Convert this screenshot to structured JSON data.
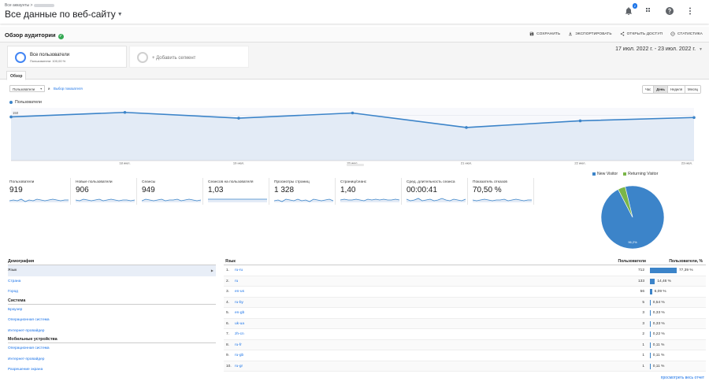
{
  "header": {
    "breadcrumb": "Все аккаунты >",
    "title": "Все данные по веб-сайту",
    "notification_count": "2",
    "icons": [
      "bell-icon",
      "apps-grid-icon",
      "help-icon",
      "more-vert-icon"
    ]
  },
  "section": {
    "title": "Обзор аудитории",
    "actions": {
      "save": "СОХРАНИТЬ",
      "export": "ЭКСПОРТИРОВАТЬ",
      "share": "ОТКРЫТЬ ДОСТУП",
      "insights": "СТАТИСТИКА"
    }
  },
  "segments": {
    "active_name": "Все пользователи",
    "active_sub": "Пользователи: 100,00 %",
    "add_label": "+ Добавить сегмент",
    "date_range": "17 июл. 2022 г. - 23 июл. 2022 г."
  },
  "tabs": {
    "overview": "Обзор"
  },
  "controls": {
    "metric": "Пользователи",
    "vs": "и",
    "pick_metric": "Выбор показателя",
    "granularity": [
      "Час",
      "День",
      "Неделя",
      "Месяц"
    ],
    "granularity_active": "День"
  },
  "chart_data": {
    "type": "line",
    "series": [
      {
        "name": "Пользователи",
        "values": [
          145,
          160,
          141,
          158,
          110,
          132,
          143
        ]
      }
    ],
    "x": [
      "17 июл.",
      "18 июл.",
      "19 июл.",
      "20 июл.",
      "21 июл.",
      "22 июл.",
      "23 июл."
    ],
    "y_ticks": [
      "150",
      "100",
      "50"
    ],
    "ylim": [
      0,
      175
    ],
    "grid": true,
    "color": "#3c84c9"
  },
  "scorecards": [
    {
      "label": "Пользователи",
      "value": "919"
    },
    {
      "label": "Новые пользователи",
      "value": "906"
    },
    {
      "label": "Сеансы",
      "value": "949"
    },
    {
      "label": "Сеансов на пользователя",
      "value": "1,03"
    },
    {
      "label": "Просмотры страниц",
      "value": "1 328"
    },
    {
      "label": "Страниц/сеанс",
      "value": "1,40"
    },
    {
      "label": "Сред. длительность сеанса",
      "value": "00:00:41"
    },
    {
      "label": "Показатель отказов",
      "value": "70,50 %"
    }
  ],
  "pie": {
    "legend": [
      "New Visitor",
      "Returning Visitor"
    ],
    "colors": [
      "#3c84c9",
      "#7ab648"
    ],
    "values": [
      0.962,
      0.038
    ],
    "label": "96,2%"
  },
  "demographics": {
    "sections": [
      {
        "title": "Демография",
        "items": [
          "Язык",
          "Страна",
          "Город"
        ]
      },
      {
        "title": "Система",
        "items": [
          "Браузер",
          "Операционная система",
          "Интернет-провайдер"
        ]
      },
      {
        "title": "Мобильные устройства",
        "items": [
          "Операционная система",
          "Интернет-провайдер",
          "Разрешение экрана"
        ]
      }
    ],
    "selected": "Язык"
  },
  "language_table": {
    "col_key": "Язык",
    "col_users": "Пользователи",
    "col_pct": "Пользователи, %",
    "rows": [
      {
        "n": "1.",
        "key": "ru-ru",
        "users": "712",
        "pct": "77,39 %",
        "frac": 0.7739
      },
      {
        "n": "2.",
        "key": "ru",
        "users": "133",
        "pct": "14,46 %",
        "frac": 0.1446
      },
      {
        "n": "3.",
        "key": "en-us",
        "users": "56",
        "pct": "6,09 %",
        "frac": 0.0609
      },
      {
        "n": "4.",
        "key": "ru-by",
        "users": "5",
        "pct": "0,54 %",
        "frac": 0.0054
      },
      {
        "n": "5.",
        "key": "en-gb",
        "users": "3",
        "pct": "0,33 %",
        "frac": 0.0033
      },
      {
        "n": "6.",
        "key": "uk-ua",
        "users": "3",
        "pct": "0,33 %",
        "frac": 0.0033
      },
      {
        "n": "7.",
        "key": "zh-cn",
        "users": "2",
        "pct": "0,22 %",
        "frac": 0.0022
      },
      {
        "n": "8.",
        "key": "ru-fr",
        "users": "1",
        "pct": "0,11 %",
        "frac": 0.0011
      },
      {
        "n": "9.",
        "key": "ru-gb",
        "users": "1",
        "pct": "0,11 %",
        "frac": 0.0011
      },
      {
        "n": "10.",
        "key": "ru-gr",
        "users": "1",
        "pct": "0,11 %",
        "frac": 0.0011
      }
    ],
    "full_report": "просмотреть весь отчет"
  }
}
